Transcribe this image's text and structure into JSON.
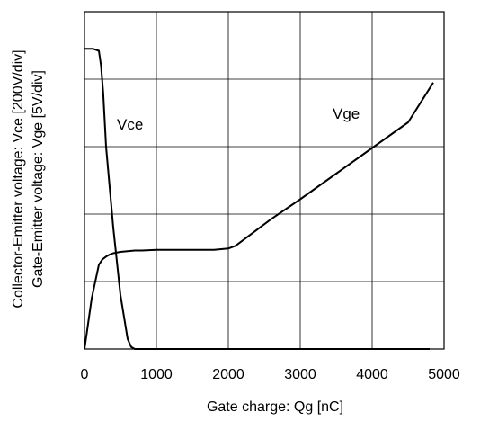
{
  "chart_data": {
    "type": "line",
    "xlabel": "Gate charge: Qg [nC]",
    "ylabel_lines": [
      "Collector-Emitter voltage: Vce [200V/div]",
      "Gate-Emitter voltage:  Vge [5V/div]"
    ],
    "xlim": [
      0,
      5000
    ],
    "xticks": [
      0,
      1000,
      2000,
      3000,
      4000,
      5000
    ],
    "ylim": [
      0,
      5
    ],
    "y_divisions": 5,
    "grid": true,
    "annotations": [
      "Vce",
      "Vge"
    ],
    "series": [
      {
        "name": "Vce",
        "x": [
          0,
          120,
          200,
          230,
          260,
          300,
          400,
          500,
          600,
          650,
          700,
          800,
          1500,
          2500,
          3500,
          4800
        ],
        "y": [
          4.45,
          4.45,
          4.42,
          4.2,
          3.8,
          3.0,
          1.8,
          0.8,
          0.15,
          0.03,
          0.0,
          0.0,
          0.0,
          0.0,
          0.0,
          0.0
        ]
      },
      {
        "name": "Vge",
        "x": [
          0,
          100,
          200,
          250,
          300,
          350,
          400,
          500,
          600,
          700,
          800,
          1000,
          1500,
          1800,
          2000,
          2100,
          2200,
          2400,
          2600,
          3000,
          3500,
          4000,
          4500,
          4850
        ],
        "y": [
          0,
          0.75,
          1.25,
          1.33,
          1.37,
          1.4,
          1.42,
          1.44,
          1.45,
          1.46,
          1.46,
          1.47,
          1.47,
          1.47,
          1.49,
          1.53,
          1.61,
          1.77,
          1.93,
          2.22,
          2.6,
          2.98,
          3.36,
          3.95
        ]
      }
    ]
  }
}
